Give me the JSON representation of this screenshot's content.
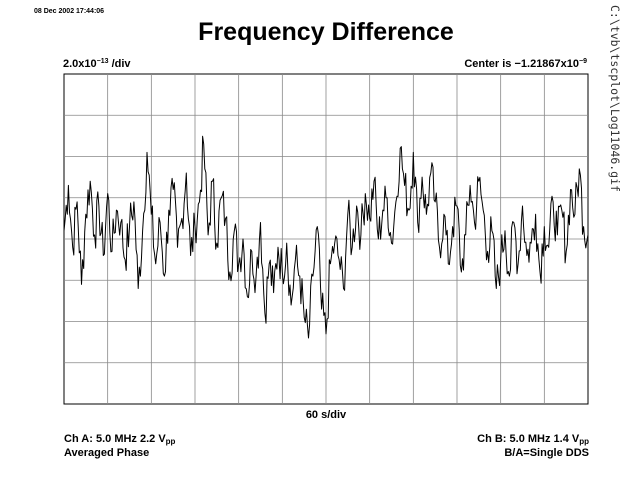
{
  "header": {
    "timestamp": "08 Dec 2002 17:44:06",
    "title": "Frequency Difference",
    "scale_mantissa": "2.0x10",
    "scale_exponent": "−13",
    "scale_unit": " /div",
    "center_prefix": "Center is −1.21867x10",
    "center_exponent": "−9",
    "file_path": "C:\\tvb\\tscplot\\Log11046.gif"
  },
  "footer": {
    "time_scale": "60 s/div",
    "ch_a_prefix": "Ch A: 5.0 MHz 2.2 V",
    "ch_a_sub": "pp",
    "ch_a_mode": "Averaged Phase",
    "ch_b_prefix": "Ch B: 5.0 MHz 1.4 V",
    "ch_b_sub": "pp",
    "ch_b_mode": "B/A=Single DDS"
  },
  "chart_data": {
    "type": "line",
    "x_unit": "s",
    "y_unit": "div",
    "x_divisions": 12,
    "y_divisions": 8,
    "seconds_per_div": 60,
    "ylim": [
      -4,
      4
    ],
    "xlim": [
      0,
      720
    ],
    "grid": true,
    "series": [
      {
        "x": [
          0,
          6,
          12,
          18,
          24,
          30,
          36,
          42,
          48,
          54,
          60,
          66,
          72,
          78,
          84,
          90,
          96,
          102,
          108,
          114,
          120,
          126,
          132,
          138,
          144,
          150,
          156,
          162,
          168,
          174,
          180,
          186,
          192,
          198,
          204,
          210,
          216,
          222,
          228,
          234,
          240,
          246,
          252,
          258,
          264,
          270,
          276,
          282,
          288,
          294,
          300,
          306,
          312,
          318,
          324,
          330,
          336,
          342,
          348,
          354,
          360,
          366,
          372,
          378,
          384,
          390,
          396,
          402,
          408,
          414,
          420,
          426,
          432,
          438,
          444,
          450,
          456,
          462,
          468,
          474,
          480,
          486,
          492,
          498,
          504,
          510,
          516,
          522,
          528,
          534,
          540,
          546,
          552,
          558,
          564,
          570,
          576,
          582,
          588,
          594,
          600,
          606,
          612,
          618,
          624,
          630,
          636,
          642,
          648,
          654,
          660,
          666,
          672,
          678,
          684,
          690,
          696,
          702,
          708,
          714,
          720
        ],
        "y": [
          0.2,
          1.3,
          -0.2,
          0.9,
          -1.1,
          0.6,
          1.4,
          0.1,
          0.8,
          -0.4,
          1.1,
          -0.3,
          0.7,
          0.4,
          -0.5,
          0.3,
          0.9,
          -1.2,
          0.2,
          2.1,
          0.6,
          -0.6,
          0.4,
          -0.9,
          0.7,
          1.2,
          -0.2,
          0.5,
          1.6,
          -0.4,
          0.3,
          0.9,
          2.3,
          0.1,
          1.4,
          -0.1,
          1.0,
          0.5,
          -0.8,
          0.2,
          -0.6,
          0.0,
          -1.4,
          -0.3,
          -0.9,
          0.4,
          -1.8,
          -0.6,
          -1.3,
          -0.2,
          -0.8,
          -0.1,
          -1.6,
          -0.5,
          -0.9,
          -1.9,
          -2.4,
          -0.9,
          0.3,
          -1.7,
          -2.3,
          -0.6,
          -0.1,
          -0.5,
          -1.2,
          0.6,
          -0.2,
          0.8,
          0.1,
          1.1,
          0.5,
          1.4,
          0.0,
          0.7,
          1.0,
          -0.1,
          0.9,
          2.2,
          1.3,
          0.7,
          2.1,
          0.4,
          1.5,
          0.6,
          1.6,
          0.9,
          -0.2,
          0.6,
          -0.6,
          0.3,
          0.8,
          -0.8,
          0.1,
          1.3,
          0.4,
          1.4,
          0.7,
          -0.3,
          0.2,
          -1.2,
          -0.5,
          0.2,
          -0.9,
          0.4,
          -0.6,
          0.8,
          -0.4,
          -0.1,
          0.6,
          -0.8,
          0.3,
          -0.2,
          0.9,
          0.1,
          0.7,
          -0.3,
          1.2,
          0.6,
          1.7,
          0.3,
          0.1
        ]
      }
    ]
  }
}
